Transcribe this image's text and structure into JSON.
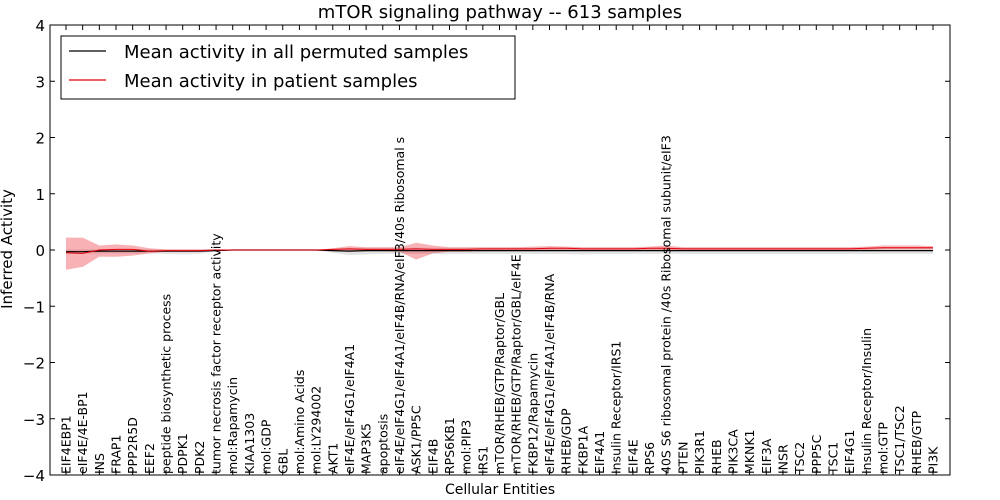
{
  "chart_data": {
    "type": "line",
    "title": "mTOR signaling pathway -- 613 samples",
    "xlabel": "Cellular Entities",
    "ylabel": "Inferred Activity",
    "ylim": [
      -4,
      4
    ],
    "yticks": [
      4,
      3,
      2,
      1,
      0,
      -1,
      -2,
      -3,
      -4
    ],
    "ytick_labels": [
      "4",
      "3",
      "2",
      "1",
      "0",
      "−1",
      "−2",
      "−3",
      "−4"
    ],
    "legend": {
      "placement": "top-left",
      "entries": [
        {
          "label": "Mean activity in all permuted samples",
          "color": "#000000"
        },
        {
          "label": "Mean activity in patient samples",
          "color": "#e8000b"
        }
      ]
    },
    "categories": [
      "EIF4EBP1",
      "eIF4E/4E-BP1",
      "INS",
      "FRAP1",
      "PPP2R5D",
      "EEF2",
      "peptide biosynthetic process",
      "PDPK1",
      "PDK2",
      "tumor necrosis factor receptor activity",
      "mol:Rapamycin",
      "KIAA1303",
      "mol:GDP",
      "GBL",
      "mol:Amino Acids",
      "mol:LY294002",
      "AKT1",
      "eIF4E/eIF4G1/eIF4A1",
      "MAP3K5",
      "apoptosis",
      "eIF4E/eIF4G1/eIF4A1/eIF4B/RNA/eIF3/40s Ribosomal s",
      "ASK1/PP5C",
      "EIF4B",
      "RPS6KB1",
      "mol:PIP3",
      "IRS1",
      "mTOR/RHEB/GTP/Raptor/GBL",
      "mTOR/RHEB/GTP/Raptor/GBL/eIF4E",
      "FKBP12/Rapamycin",
      "eIF4E/eIF4G1/eIF4A1/eIF4B/RNA",
      "RHEB/GDP",
      "FKBP1A",
      "EIF4A1",
      "Insulin Receptor/IRS1",
      "EIF4E",
      "RPS6",
      "40S S6 ribosomal protein /40s Ribosomal subunit/eIF3",
      "PTEN",
      "PIK3R1",
      "RHEB",
      "PIK3CA",
      "MKNK1",
      "EIF3A",
      "INSR",
      "TSC2",
      "PPP5C",
      "TSC1",
      "EIF4G1",
      "Insulin Receptor/Insulin",
      "mol:GTP",
      "TSC1/TSC2",
      "RHEB/GTP",
      "PI3K"
    ],
    "series": [
      {
        "name": "Mean activity in all permuted samples",
        "color": "#000000",
        "values": [
          -0.03,
          -0.03,
          -0.02,
          -0.02,
          -0.02,
          -0.02,
          -0.02,
          -0.02,
          -0.02,
          -0.01,
          0,
          0,
          0,
          0,
          0,
          0,
          -0.01,
          -0.02,
          -0.01,
          -0.01,
          -0.01,
          -0.01,
          -0.01,
          -0.01,
          -0.01,
          -0.01,
          -0.01,
          -0.01,
          -0.01,
          -0.01,
          -0.01,
          -0.01,
          -0.01,
          -0.01,
          -0.01,
          -0.01,
          -0.01,
          -0.01,
          -0.01,
          -0.01,
          -0.01,
          -0.01,
          -0.01,
          -0.01,
          -0.01,
          -0.01,
          -0.01,
          -0.01,
          -0.01,
          -0.01,
          -0.01,
          -0.01,
          -0.01
        ],
        "band_upper": [
          0.01,
          0.01,
          0.01,
          0.01,
          0.01,
          0.01,
          0.01,
          0.01,
          0.01,
          0.01,
          0.01,
          0.01,
          0.01,
          0.01,
          0.01,
          0.01,
          0.02,
          0.03,
          0.04,
          0.04,
          0.04,
          0.04,
          0.04,
          0.04,
          0.04,
          0.04,
          0.04,
          0.04,
          0.04,
          0.04,
          0.04,
          0.04,
          0.04,
          0.04,
          0.04,
          0.04,
          0.04,
          0.04,
          0.04,
          0.04,
          0.04,
          0.04,
          0.04,
          0.04,
          0.04,
          0.04,
          0.04,
          0.04,
          0.04,
          0.04,
          0.04,
          0.04,
          0.04
        ],
        "band_lower": [
          -0.07,
          -0.07,
          -0.06,
          -0.06,
          -0.06,
          -0.06,
          -0.07,
          -0.08,
          -0.07,
          -0.02,
          -0.01,
          -0.01,
          -0.01,
          -0.01,
          -0.01,
          -0.01,
          -0.05,
          -0.09,
          -0.08,
          -0.07,
          -0.07,
          -0.07,
          -0.07,
          -0.07,
          -0.07,
          -0.07,
          -0.07,
          -0.07,
          -0.07,
          -0.07,
          -0.07,
          -0.08,
          -0.07,
          -0.07,
          -0.07,
          -0.07,
          -0.07,
          -0.07,
          -0.07,
          -0.07,
          -0.07,
          -0.07,
          -0.07,
          -0.07,
          -0.07,
          -0.07,
          -0.07,
          -0.07,
          -0.07,
          -0.07,
          -0.07,
          -0.07,
          -0.07
        ]
      },
      {
        "name": "Mean activity in patient samples",
        "color": "#e8000b",
        "values": [
          -0.05,
          -0.06,
          0,
          0.01,
          0.01,
          -0.02,
          -0.01,
          -0.01,
          -0.01,
          0,
          0,
          0,
          0,
          0,
          0,
          0,
          0.01,
          0.02,
          0.01,
          0.01,
          0.01,
          0.02,
          0.01,
          0.01,
          0.01,
          0.02,
          0.02,
          0.02,
          0.02,
          0.03,
          0.03,
          0.02,
          0.02,
          0.02,
          0.02,
          0.03,
          0.03,
          0.02,
          0.02,
          0.02,
          0.02,
          0.02,
          0.02,
          0.02,
          0.02,
          0.02,
          0.02,
          0.02,
          0.03,
          0.04,
          0.04,
          0.04,
          0.04
        ],
        "band_upper": [
          0.22,
          0.22,
          0.08,
          0.1,
          0.08,
          0.03,
          0.01,
          0.01,
          0.01,
          0.01,
          0,
          0,
          0,
          0,
          0,
          0,
          0.03,
          0.07,
          0.05,
          0.05,
          0.05,
          0.13,
          0.08,
          0.05,
          0.05,
          0.05,
          0.05,
          0.05,
          0.06,
          0.07,
          0.06,
          0.05,
          0.05,
          0.05,
          0.05,
          0.06,
          0.08,
          0.05,
          0.05,
          0.05,
          0.05,
          0.05,
          0.05,
          0.05,
          0.05,
          0.05,
          0.05,
          0.05,
          0.06,
          0.08,
          0.08,
          0.08,
          0.07
        ],
        "band_lower": [
          -0.35,
          -0.3,
          -0.12,
          -0.12,
          -0.1,
          -0.06,
          -0.03,
          -0.03,
          -0.03,
          -0.01,
          0,
          0,
          0,
          0,
          0,
          0,
          -0.02,
          -0.03,
          -0.02,
          -0.02,
          -0.03,
          -0.17,
          -0.06,
          -0.03,
          -0.03,
          -0.02,
          -0.02,
          -0.02,
          -0.02,
          -0.01,
          0,
          -0.01,
          -0.01,
          -0.01,
          -0.01,
          0,
          -0.01,
          -0.01,
          -0.01,
          -0.01,
          -0.01,
          -0.01,
          -0.01,
          -0.01,
          -0.01,
          -0.01,
          -0.01,
          -0.01,
          0,
          0.01,
          0.01,
          0.01,
          0.01
        ]
      }
    ]
  }
}
